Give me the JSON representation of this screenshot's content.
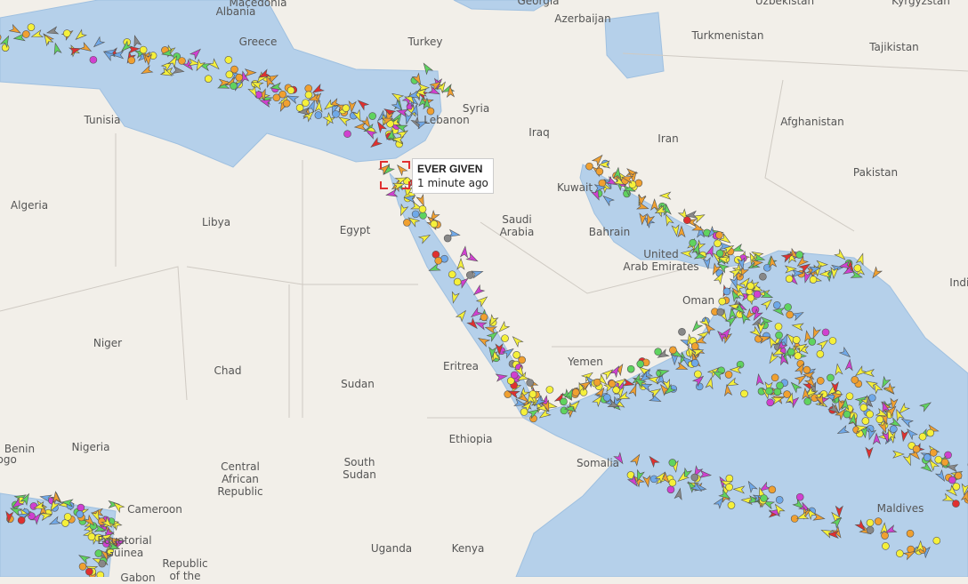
{
  "map": {
    "countries": [
      {
        "name": "Macedonia",
        "id": "macedonia"
      },
      {
        "name": "Albania",
        "id": "albania"
      },
      {
        "name": "Greece",
        "id": "greece"
      },
      {
        "name": "Turkey",
        "id": "turkey"
      },
      {
        "name": "Georgia",
        "id": "georgia"
      },
      {
        "name": "Azerbaijan",
        "id": "azerbaijan"
      },
      {
        "name": "Uzbekistan",
        "id": "uzbekistan"
      },
      {
        "name": "Kyrgyzstan",
        "id": "kyrgyzstan"
      },
      {
        "name": "Turkmenistan",
        "id": "turkmenistan"
      },
      {
        "name": "Tajikistan",
        "id": "tajikistan"
      },
      {
        "name": "Tunisia",
        "id": "tunisia"
      },
      {
        "name": "Syria",
        "id": "syria"
      },
      {
        "name": "Lebanon",
        "id": "lebanon"
      },
      {
        "name": "Iraq",
        "id": "iraq"
      },
      {
        "name": "Iran",
        "id": "iran"
      },
      {
        "name": "Afghanistan",
        "id": "afghanistan"
      },
      {
        "name": "Pakistan",
        "id": "pakistan"
      },
      {
        "name": "Algeria",
        "id": "algeria"
      },
      {
        "name": "Libya",
        "id": "libya"
      },
      {
        "name": "Egypt",
        "id": "egypt"
      },
      {
        "name": "Kuwait",
        "id": "kuwait"
      },
      {
        "name": "Saudi\nArabia",
        "id": "saudi-arabia"
      },
      {
        "name": "Bahrain",
        "id": "bahrain"
      },
      {
        "name": "United\nArab Emirates",
        "id": "uae"
      },
      {
        "name": "Oman",
        "id": "oman"
      },
      {
        "name": "India",
        "id": "india"
      },
      {
        "name": "Niger",
        "id": "niger"
      },
      {
        "name": "Chad",
        "id": "chad"
      },
      {
        "name": "Sudan",
        "id": "sudan"
      },
      {
        "name": "Eritrea",
        "id": "eritrea"
      },
      {
        "name": "Yemen",
        "id": "yemen"
      },
      {
        "name": "Benin",
        "id": "benin"
      },
      {
        "name": "Togo",
        "id": "togo"
      },
      {
        "name": "Nigeria",
        "id": "nigeria"
      },
      {
        "name": "Central\nAfrican\nRepublic",
        "id": "car"
      },
      {
        "name": "South\nSudan",
        "id": "south-sudan"
      },
      {
        "name": "Ethiopia",
        "id": "ethiopia"
      },
      {
        "name": "Somalia",
        "id": "somalia"
      },
      {
        "name": "Cameroon",
        "id": "cameroon"
      },
      {
        "name": "Equatorial\nGuinea",
        "id": "eq-guinea"
      },
      {
        "name": "Republic\nof the",
        "id": "congo"
      },
      {
        "name": "Gabon",
        "id": "gabon"
      },
      {
        "name": "Uganda",
        "id": "uganda"
      },
      {
        "name": "Kenya",
        "id": "kenya"
      },
      {
        "name": "Maldives",
        "id": "maldives"
      }
    ]
  },
  "tooltip": {
    "vessel_name": "EVER GIVEN",
    "last_seen": "1 minute ago"
  },
  "colors": {
    "land": "#f2efe9",
    "water": "#b5d0ea",
    "border": "#cfcac3",
    "selection": "#e03030",
    "ship_types": [
      "#f5f03a",
      "#f0a030",
      "#5fd35f",
      "#6fa8e8",
      "#d040d0",
      "#e03030",
      "#888888"
    ]
  }
}
